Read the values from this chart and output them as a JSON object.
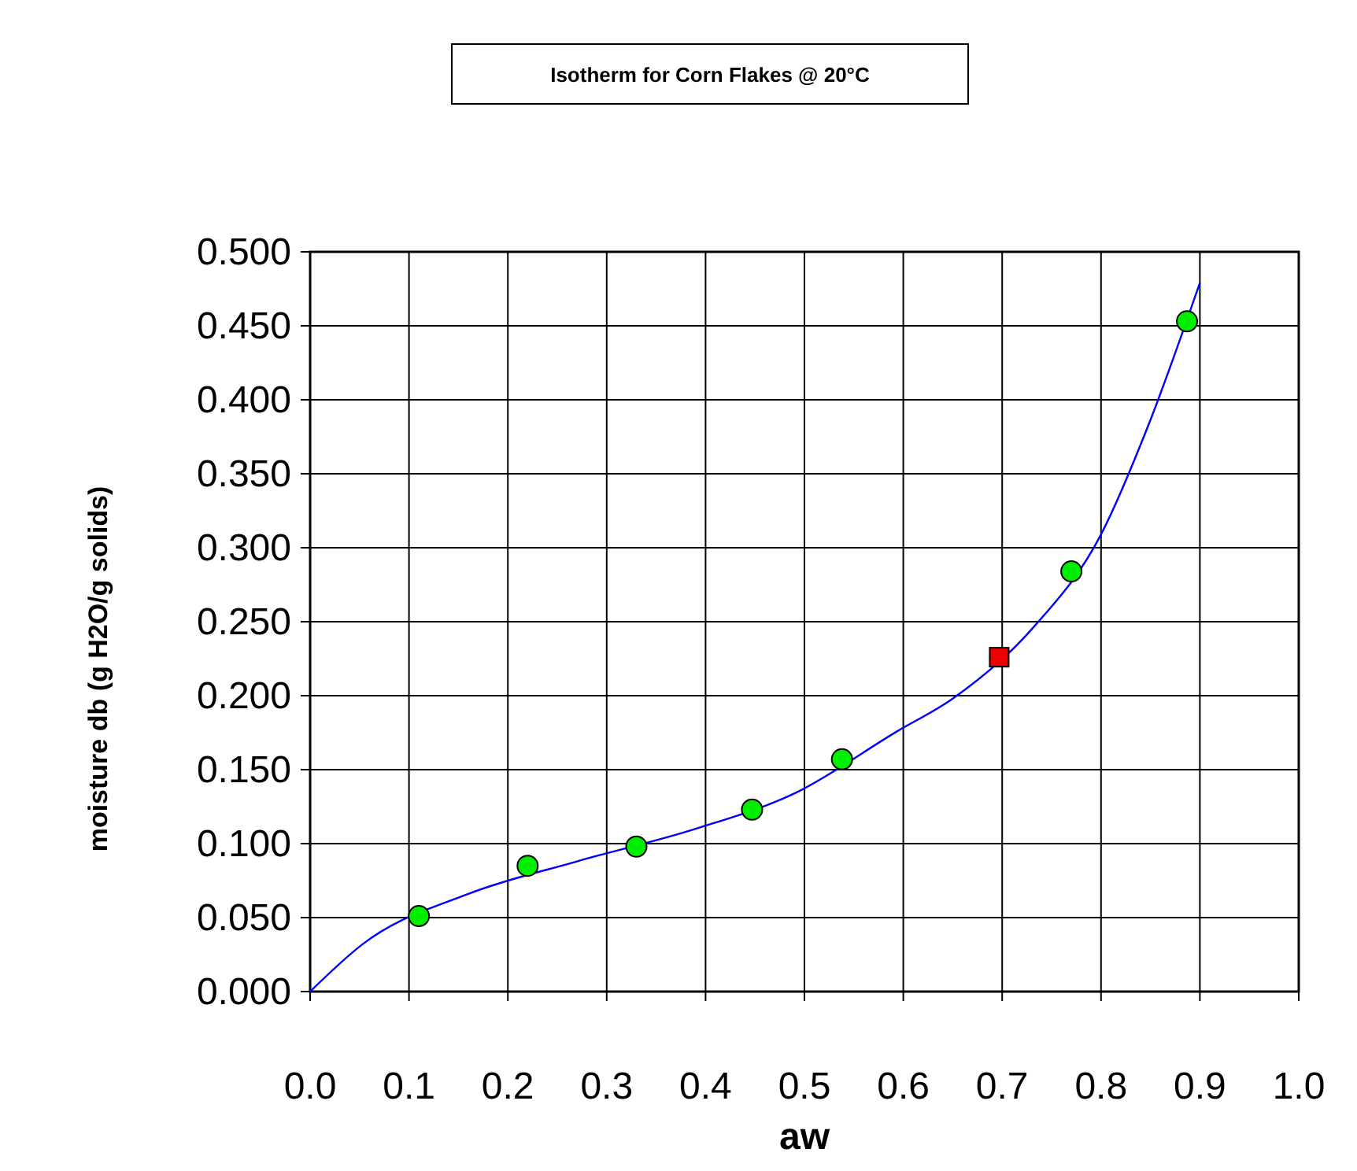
{
  "chart_data": {
    "type": "scatter",
    "title": "Isotherm for Corn Flakes @ 20°C",
    "xlabel": "aw",
    "ylabel": "moisture db  (g H2O/g solids)",
    "xlim": [
      0,
      1
    ],
    "ylim": [
      0,
      0.5
    ],
    "xticks": [
      {
        "value": 0,
        "label": "0.0"
      },
      {
        "value": 0.1,
        "label": "0.1"
      },
      {
        "value": 0.2,
        "label": "0.2"
      },
      {
        "value": 0.3,
        "label": "0.3"
      },
      {
        "value": 0.4,
        "label": "0.4"
      },
      {
        "value": 0.5,
        "label": "0.5"
      },
      {
        "value": 0.6,
        "label": "0.6"
      },
      {
        "value": 0.7,
        "label": "0.7"
      },
      {
        "value": 0.8,
        "label": "0.8"
      },
      {
        "value": 0.9,
        "label": "0.9"
      },
      {
        "value": 1,
        "label": "1.0"
      }
    ],
    "yticks": [
      {
        "value": 0,
        "label": "0.000"
      },
      {
        "value": 0.05,
        "label": "0.050"
      },
      {
        "value": 0.1,
        "label": "0.100"
      },
      {
        "value": 0.15,
        "label": "0.150"
      },
      {
        "value": 0.2,
        "label": "0.200"
      },
      {
        "value": 0.25,
        "label": "0.250"
      },
      {
        "value": 0.3,
        "label": "0.300"
      },
      {
        "value": 0.35,
        "label": "0.350"
      },
      {
        "value": 0.4,
        "label": "0.400"
      },
      {
        "value": 0.45,
        "label": "0.450"
      },
      {
        "value": 0.5,
        "label": "0.500"
      }
    ],
    "grid": true,
    "series": [
      {
        "type": "line",
        "color": "#0000ff",
        "marker": "none",
        "x": [
          0,
          0.053,
          0.16,
          0.27,
          0.39,
          0.49,
          0.594,
          0.65,
          0.73,
          0.8,
          0.848,
          0.9
        ],
        "values": [
          0,
          0.032,
          0.066,
          0.088,
          0.11,
          0.134,
          0.176,
          0.198,
          0.245,
          0.309,
          0.383,
          0.479
        ]
      },
      {
        "color": "#00ee00",
        "marker": "circle",
        "x": [
          0.11,
          0.22,
          0.33,
          0.447,
          0.538,
          0.77,
          0.887
        ],
        "values": [
          0.051,
          0.085,
          0.098,
          0.123,
          0.157,
          0.284,
          0.453
        ]
      },
      {
        "color": "#ee0000",
        "marker": "square",
        "x": [
          0.697
        ],
        "values": [
          0.226
        ]
      }
    ]
  }
}
